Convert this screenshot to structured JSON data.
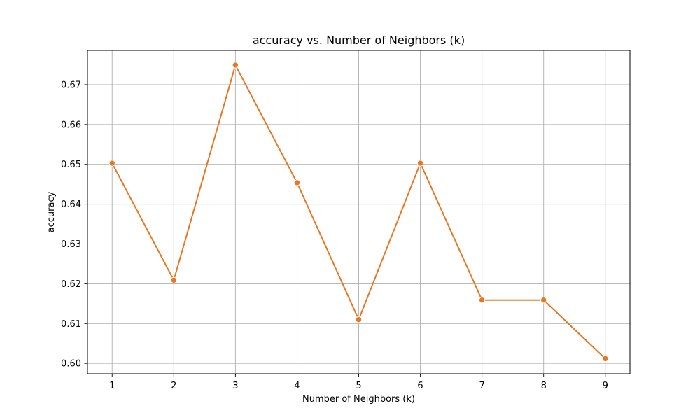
{
  "chart_data": {
    "type": "line",
    "title": "accuracy vs. Number of Neighbors (k)",
    "xlabel": "Number of Neighbors (k)",
    "ylabel": "accuracy",
    "x": [
      1,
      2,
      3,
      4,
      5,
      6,
      7,
      8,
      9
    ],
    "x_ticks": [
      "1",
      "2",
      "3",
      "4",
      "5",
      "6",
      "7",
      "8",
      "9"
    ],
    "y_ticks": [
      "0.60",
      "0.61",
      "0.62",
      "0.63",
      "0.64",
      "0.65",
      "0.66",
      "0.67"
    ],
    "y_tick_values": [
      0.6,
      0.61,
      0.62,
      0.63,
      0.64,
      0.65,
      0.66,
      0.67
    ],
    "xlim": [
      0.6,
      9.4
    ],
    "ylim": [
      0.5974,
      0.6786
    ],
    "grid": true,
    "series": [
      {
        "values": [
          0.6503,
          0.6209,
          0.6749,
          0.6454,
          0.611,
          0.6503,
          0.6159,
          0.6159,
          0.6012
        ],
        "color": "#e87722",
        "marker": "circle"
      }
    ]
  }
}
